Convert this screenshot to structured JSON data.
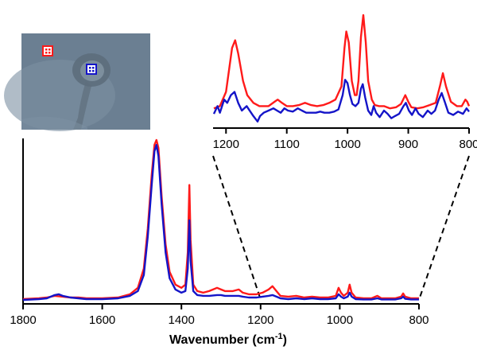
{
  "colors": {
    "red": "#ff1a1a",
    "blue": "#1414c8",
    "inset_bg": "#6b7f92"
  },
  "chart_data": [
    {
      "type": "line",
      "id": "main",
      "xlabel": "Wavenumber (cm",
      "xlabel_sup": "-1",
      "xlabel_end": ")",
      "xlim": [
        1800,
        800
      ],
      "x_reversed": true,
      "ylim": [
        0,
        1.0
      ],
      "y_ticks_shown": false,
      "xticks": [
        1800,
        1600,
        1400,
        1200,
        1000,
        800
      ],
      "xtick_labels": [
        "1800",
        "1600",
        "1400",
        "1200",
        "1000",
        "800"
      ],
      "series": [
        {
          "color": "red",
          "points": [
            [
              1800,
              0.01
            ],
            [
              1760,
              0.015
            ],
            [
              1740,
              0.02
            ],
            [
              1720,
              0.03
            ],
            [
              1700,
              0.025
            ],
            [
              1680,
              0.02
            ],
            [
              1660,
              0.02
            ],
            [
              1640,
              0.015
            ],
            [
              1600,
              0.015
            ],
            [
              1560,
              0.02
            ],
            [
              1530,
              0.04
            ],
            [
              1510,
              0.08
            ],
            [
              1495,
              0.2
            ],
            [
              1485,
              0.45
            ],
            [
              1475,
              0.78
            ],
            [
              1468,
              0.97
            ],
            [
              1463,
              1.0
            ],
            [
              1458,
              0.95
            ],
            [
              1450,
              0.65
            ],
            [
              1440,
              0.35
            ],
            [
              1430,
              0.18
            ],
            [
              1415,
              0.1
            ],
            [
              1400,
              0.08
            ],
            [
              1390,
              0.1
            ],
            [
              1384,
              0.3
            ],
            [
              1380,
              0.72
            ],
            [
              1377,
              0.38
            ],
            [
              1370,
              0.1
            ],
            [
              1360,
              0.06
            ],
            [
              1345,
              0.05
            ],
            [
              1330,
              0.06
            ],
            [
              1310,
              0.08
            ],
            [
              1300,
              0.07
            ],
            [
              1290,
              0.06
            ],
            [
              1270,
              0.06
            ],
            [
              1255,
              0.07
            ],
            [
              1245,
              0.05
            ],
            [
              1230,
              0.04
            ],
            [
              1210,
              0.04
            ],
            [
              1195,
              0.05
            ],
            [
              1180,
              0.07
            ],
            [
              1170,
              0.09
            ],
            [
              1160,
              0.06
            ],
            [
              1150,
              0.03
            ],
            [
              1130,
              0.025
            ],
            [
              1110,
              0.03
            ],
            [
              1090,
              0.02
            ],
            [
              1070,
              0.025
            ],
            [
              1050,
              0.02
            ],
            [
              1030,
              0.02
            ],
            [
              1010,
              0.03
            ],
            [
              1003,
              0.08
            ],
            [
              997,
              0.05
            ],
            [
              990,
              0.03
            ],
            [
              980,
              0.05
            ],
            [
              975,
              0.1
            ],
            [
              970,
              0.05
            ],
            [
              960,
              0.02
            ],
            [
              940,
              0.015
            ],
            [
              920,
              0.015
            ],
            [
              905,
              0.03
            ],
            [
              895,
              0.015
            ],
            [
              880,
              0.015
            ],
            [
              860,
              0.015
            ],
            [
              845,
              0.025
            ],
            [
              840,
              0.045
            ],
            [
              835,
              0.025
            ],
            [
              820,
              0.015
            ],
            [
              800,
              0.015
            ]
          ]
        },
        {
          "color": "blue",
          "points": [
            [
              1800,
              0.005
            ],
            [
              1760,
              0.01
            ],
            [
              1740,
              0.015
            ],
            [
              1720,
              0.035
            ],
            [
              1710,
              0.04
            ],
            [
              1700,
              0.03
            ],
            [
              1680,
              0.02
            ],
            [
              1660,
              0.015
            ],
            [
              1640,
              0.01
            ],
            [
              1600,
              0.01
            ],
            [
              1560,
              0.015
            ],
            [
              1530,
              0.03
            ],
            [
              1510,
              0.06
            ],
            [
              1495,
              0.16
            ],
            [
              1485,
              0.4
            ],
            [
              1475,
              0.72
            ],
            [
              1468,
              0.93
            ],
            [
              1463,
              0.97
            ],
            [
              1458,
              0.9
            ],
            [
              1450,
              0.6
            ],
            [
              1440,
              0.3
            ],
            [
              1430,
              0.14
            ],
            [
              1415,
              0.07
            ],
            [
              1400,
              0.05
            ],
            [
              1390,
              0.06
            ],
            [
              1384,
              0.2
            ],
            [
              1380,
              0.5
            ],
            [
              1377,
              0.25
            ],
            [
              1370,
              0.06
            ],
            [
              1360,
              0.035
            ],
            [
              1345,
              0.03
            ],
            [
              1330,
              0.03
            ],
            [
              1310,
              0.035
            ],
            [
              1300,
              0.035
            ],
            [
              1290,
              0.03
            ],
            [
              1270,
              0.03
            ],
            [
              1255,
              0.03
            ],
            [
              1245,
              0.025
            ],
            [
              1230,
              0.02
            ],
            [
              1210,
              0.02
            ],
            [
              1195,
              0.025
            ],
            [
              1180,
              0.03
            ],
            [
              1170,
              0.035
            ],
            [
              1160,
              0.025
            ],
            [
              1150,
              0.015
            ],
            [
              1130,
              0.01
            ],
            [
              1110,
              0.015
            ],
            [
              1090,
              0.01
            ],
            [
              1070,
              0.015
            ],
            [
              1050,
              0.01
            ],
            [
              1030,
              0.01
            ],
            [
              1010,
              0.015
            ],
            [
              1003,
              0.04
            ],
            [
              997,
              0.025
            ],
            [
              990,
              0.015
            ],
            [
              980,
              0.025
            ],
            [
              975,
              0.05
            ],
            [
              970,
              0.025
            ],
            [
              960,
              0.01
            ],
            [
              940,
              0.008
            ],
            [
              920,
              0.008
            ],
            [
              905,
              0.015
            ],
            [
              895,
              0.008
            ],
            [
              880,
              0.008
            ],
            [
              860,
              0.008
            ],
            [
              845,
              0.015
            ],
            [
              840,
              0.025
            ],
            [
              835,
              0.012
            ],
            [
              820,
              0.008
            ],
            [
              800,
              0.008
            ]
          ]
        }
      ]
    },
    {
      "type": "line",
      "id": "inset",
      "xlim": [
        1220,
        800
      ],
      "x_reversed": true,
      "ylim": [
        0,
        1.0
      ],
      "y_ticks_shown": false,
      "xticks": [
        1200,
        1100,
        1000,
        900,
        800
      ],
      "xtick_labels": [
        "1200",
        "1100",
        "1000",
        "900",
        "800"
      ],
      "series": [
        {
          "color": "red",
          "points": [
            [
              1220,
              0.1
            ],
            [
              1210,
              0.12
            ],
            [
              1200,
              0.25
            ],
            [
              1195,
              0.45
            ],
            [
              1190,
              0.65
            ],
            [
              1185,
              0.72
            ],
            [
              1180,
              0.6
            ],
            [
              1172,
              0.35
            ],
            [
              1165,
              0.22
            ],
            [
              1155,
              0.15
            ],
            [
              1145,
              0.12
            ],
            [
              1130,
              0.12
            ],
            [
              1120,
              0.16
            ],
            [
              1115,
              0.18
            ],
            [
              1108,
              0.15
            ],
            [
              1100,
              0.12
            ],
            [
              1090,
              0.12
            ],
            [
              1080,
              0.13
            ],
            [
              1070,
              0.15
            ],
            [
              1060,
              0.13
            ],
            [
              1050,
              0.12
            ],
            [
              1040,
              0.13
            ],
            [
              1030,
              0.15
            ],
            [
              1020,
              0.18
            ],
            [
              1010,
              0.3
            ],
            [
              1005,
              0.65
            ],
            [
              1002,
              0.8
            ],
            [
              998,
              0.7
            ],
            [
              993,
              0.35
            ],
            [
              988,
              0.22
            ],
            [
              985,
              0.22
            ],
            [
              982,
              0.35
            ],
            [
              978,
              0.75
            ],
            [
              974,
              0.95
            ],
            [
              970,
              0.7
            ],
            [
              966,
              0.35
            ],
            [
              960,
              0.18
            ],
            [
              955,
              0.13
            ],
            [
              948,
              0.12
            ],
            [
              940,
              0.12
            ],
            [
              930,
              0.1
            ],
            [
              920,
              0.11
            ],
            [
              912,
              0.14
            ],
            [
              905,
              0.22
            ],
            [
              900,
              0.16
            ],
            [
              895,
              0.11
            ],
            [
              885,
              0.1
            ],
            [
              875,
              0.11
            ],
            [
              865,
              0.13
            ],
            [
              855,
              0.15
            ],
            [
              848,
              0.3
            ],
            [
              843,
              0.42
            ],
            [
              838,
              0.3
            ],
            [
              830,
              0.16
            ],
            [
              820,
              0.12
            ],
            [
              812,
              0.12
            ],
            [
              806,
              0.18
            ],
            [
              803,
              0.16
            ],
            [
              800,
              0.12
            ]
          ]
        },
        {
          "color": "blue",
          "points": [
            [
              1220,
              0.05
            ],
            [
              1214,
              0.12
            ],
            [
              1210,
              0.06
            ],
            [
              1203,
              0.18
            ],
            [
              1198,
              0.15
            ],
            [
              1192,
              0.22
            ],
            [
              1186,
              0.25
            ],
            [
              1180,
              0.15
            ],
            [
              1174,
              0.08
            ],
            [
              1166,
              0.12
            ],
            [
              1160,
              0.07
            ],
            [
              1155,
              0.03
            ],
            [
              1148,
              -0.02
            ],
            [
              1144,
              0.03
            ],
            [
              1138,
              0.06
            ],
            [
              1130,
              0.08
            ],
            [
              1122,
              0.1
            ],
            [
              1116,
              0.08
            ],
            [
              1110,
              0.06
            ],
            [
              1104,
              0.1
            ],
            [
              1098,
              0.08
            ],
            [
              1090,
              0.07
            ],
            [
              1082,
              0.1
            ],
            [
              1075,
              0.08
            ],
            [
              1068,
              0.06
            ],
            [
              1060,
              0.06
            ],
            [
              1052,
              0.06
            ],
            [
              1045,
              0.07
            ],
            [
              1038,
              0.06
            ],
            [
              1030,
              0.06
            ],
            [
              1022,
              0.07
            ],
            [
              1015,
              0.09
            ],
            [
              1008,
              0.22
            ],
            [
              1004,
              0.36
            ],
            [
              1000,
              0.33
            ],
            [
              996,
              0.22
            ],
            [
              992,
              0.14
            ],
            [
              987,
              0.12
            ],
            [
              982,
              0.15
            ],
            [
              978,
              0.28
            ],
            [
              975,
              0.32
            ],
            [
              971,
              0.2
            ],
            [
              966,
              0.08
            ],
            [
              961,
              0.04
            ],
            [
              957,
              0.12
            ],
            [
              953,
              0.06
            ],
            [
              947,
              0.02
            ],
            [
              940,
              0.08
            ],
            [
              934,
              0.05
            ],
            [
              928,
              0.01
            ],
            [
              922,
              0.03
            ],
            [
              915,
              0.05
            ],
            [
              908,
              0.12
            ],
            [
              904,
              0.15
            ],
            [
              899,
              0.08
            ],
            [
              894,
              0.04
            ],
            [
              888,
              0.1
            ],
            [
              883,
              0.05
            ],
            [
              876,
              0.02
            ],
            [
              868,
              0.08
            ],
            [
              862,
              0.05
            ],
            [
              856,
              0.08
            ],
            [
              850,
              0.18
            ],
            [
              845,
              0.24
            ],
            [
              840,
              0.16
            ],
            [
              834,
              0.06
            ],
            [
              826,
              0.04
            ],
            [
              818,
              0.07
            ],
            [
              810,
              0.05
            ],
            [
              804,
              0.1
            ],
            [
              800,
              0.07
            ]
          ]
        }
      ]
    }
  ]
}
